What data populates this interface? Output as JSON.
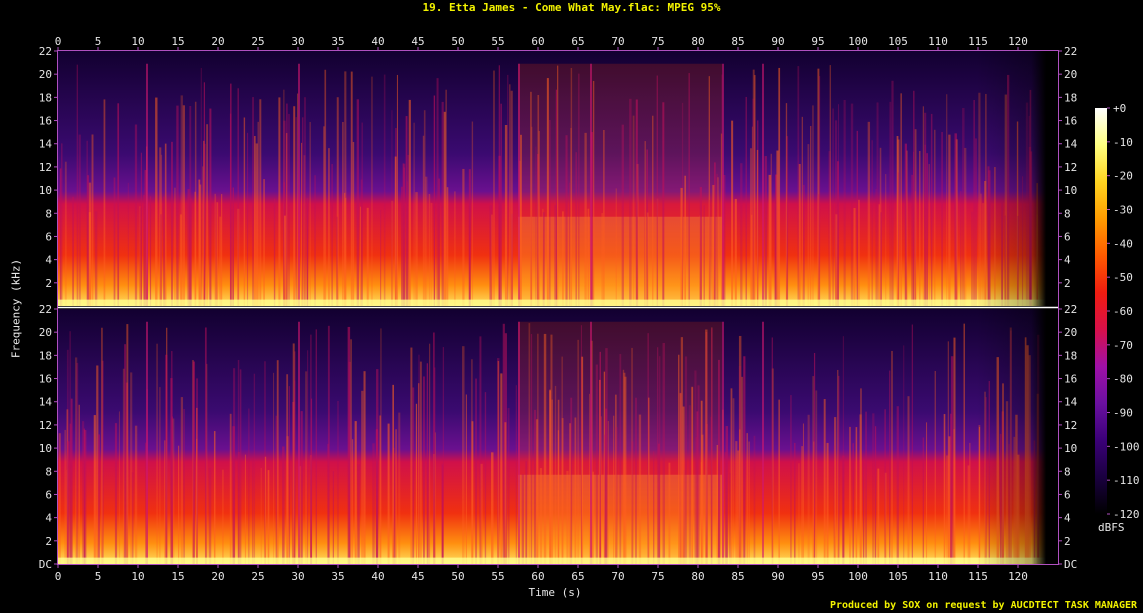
{
  "title": "19. Etta James - Come What May.flac: MPEG 95%",
  "footer": "Produced by SOX on request by AUCDTECT TASK MANAGER",
  "chart_data": {
    "type": "heatmap",
    "title": "19. Etta James - Come What May.flac: MPEG 95%",
    "xlabel": "Time (s)",
    "ylabel": "Frequency (kHz)",
    "xlim": [
      0,
      125
    ],
    "x_ticks": [
      "0",
      "5",
      "10",
      "15",
      "20",
      "25",
      "30",
      "35",
      "40",
      "45",
      "50",
      "55",
      "60",
      "65",
      "70",
      "75",
      "80",
      "85",
      "90",
      "95",
      "100",
      "105",
      "110",
      "115",
      "120"
    ],
    "ylim": [
      0,
      22
    ],
    "y_ticks_left": [
      "DC",
      "2",
      "4",
      "6",
      "8",
      "10",
      "12",
      "14",
      "16",
      "18",
      "20",
      "22"
    ],
    "y_ticks_right": [
      "DC",
      "2",
      "4",
      "6",
      "8",
      "10",
      "12",
      "14",
      "16",
      "18",
      "20",
      "22"
    ],
    "channels": 2,
    "audio_end_s": 123.5,
    "energy_loud_section_s": [
      57.5,
      83
    ],
    "vertical_transient_times_s": [
      11,
      30,
      57.5,
      66.5,
      83,
      88
    ],
    "colorbar": {
      "unit": "dBFS",
      "ticks": [
        "+0",
        "-10",
        "-20",
        "-30",
        "-40",
        "-50",
        "-60",
        "-70",
        "-80",
        "-90",
        "-100",
        "-110",
        "-120"
      ],
      "range": [
        -120,
        0
      ],
      "colors": [
        "#000000",
        "#1a0040",
        "#3b0078",
        "#6b10a0",
        "#a010a8",
        "#d8104a",
        "#f01c10",
        "#ff5a00",
        "#ff9c00",
        "#ffd420",
        "#ffff80",
        "#ffffff"
      ]
    }
  }
}
